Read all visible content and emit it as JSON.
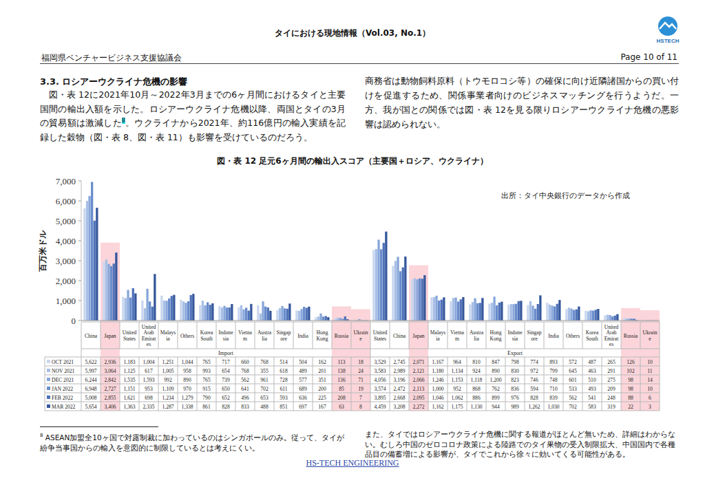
{
  "header": {
    "title": "タイにおける現地情報（Vol.03, No.1）",
    "logo": "HSTECH",
    "organization": "福岡県ベンチャービジネス支援協議会",
    "page": "Page 10 of 11"
  },
  "section": {
    "heading": "3.3. ロシアーウクライナ危機の影響",
    "paragraph_left": [
      "図・表 12に2021年10月～2022年3月までの6ヶ月間におけるタイと主要国間の輸出入額を示した。ロシアーウクライナ危機以降、両国とタイの3月の貿易額は激減した",
      "8",
      "。ウクライナから2021年、約116億円の輸入実績を記録した穀物（図・表 8、図・表 11）も影響を受けているのだろう。"
    ],
    "paragraph_right": "商務省は動物飼料原料（トウモロコシ等）の確保に向け近隣諸国からの買い付けを促進するため、関係事業者向けのビジネスマッチングを行うようだ。一方、我が国との関係では図・表 12を見る限りロシアーウクライナ危機の悪影響は認められない。"
  },
  "chart_data": {
    "type": "bar",
    "title": "図・表 12 足元6ヶ月間の輸出入スコア（主要国＋ロシア、ウクライナ）",
    "y_label": "百万米ドル",
    "annotation": "出所：タイ中央銀行のデータから作成",
    "group_labels": [
      "Import",
      "Export"
    ],
    "categories": [
      "China",
      "Japan",
      "United States",
      "United Arab Emirates",
      "Malaysia",
      "Others",
      "Korea South",
      "Indonesia",
      "Vietnam",
      "Australia",
      "Singapore",
      "India",
      "Hong Kong",
      "Russia",
      "Ukraine",
      "United States",
      "China",
      "Japan",
      "Malaysia",
      "Vietnam",
      "Australia",
      "Hong Kong",
      "Indonesia",
      "Singapore",
      "India",
      "Others",
      "Korea South",
      "United Arab Emirates",
      "Russia",
      "Ukraine"
    ],
    "series": [
      {
        "name": "OCT 2021",
        "color": "#c9d7ef",
        "values": [
          5622,
          2936,
          1183,
          1004,
          1251,
          1044,
          765,
          717,
          660,
          768,
          514,
          504,
          162,
          113,
          18,
          3529,
          2745,
          2071,
          1167,
          964,
          810,
          847,
          798,
          774,
          893,
          572,
          487,
          265,
          126,
          10
        ],
        "value_labels": [
          "5,622",
          "2,936",
          "1,183",
          "1,004",
          "1,251",
          "1,044",
          "765",
          "717",
          "660",
          "768",
          "514",
          "504",
          "162",
          "113",
          "18",
          "3,529",
          "2,745",
          "2,071",
          "1,167",
          "964",
          "810",
          "847",
          "798",
          "774",
          "893",
          "572",
          "487",
          "265",
          "126",
          "10"
        ]
      },
      {
        "name": "NOV 2021",
        "color": "#a8bfe6",
        "values": [
          5997,
          3064,
          1125,
          617,
          1005,
          958,
          993,
          654,
          768,
          355,
          618,
          489,
          201,
          138,
          24,
          3583,
          2989,
          2121,
          1180,
          1134,
          924,
          890,
          830,
          972,
          799,
          645,
          463,
          291,
          102,
          11
        ],
        "value_labels": [
          "5,997",
          "3,064",
          "1,125",
          "617",
          "1,005",
          "958",
          "993",
          "654",
          "768",
          "355",
          "618",
          "489",
          "201",
          "138",
          "24",
          "3,583",
          "2,989",
          "2,121",
          "1,180",
          "1,134",
          "924",
          "890",
          "830",
          "972",
          "799",
          "645",
          "463",
          "291",
          "102",
          "11"
        ]
      },
      {
        "name": "DEC 2021",
        "color": "#87a6da",
        "values": [
          6244,
          2842,
          1535,
          1593,
          992,
          890,
          765,
          739,
          562,
          961,
          728,
          577,
          351,
          136,
          71,
          4056,
          3196,
          2066,
          1246,
          1153,
          1118,
          1200,
          823,
          746,
          748,
          601,
          510,
          275,
          98,
          14
        ],
        "value_labels": [
          "6,244",
          "2,842",
          "1,535",
          "1,593",
          "992",
          "890",
          "765",
          "739",
          "562",
          "961",
          "728",
          "577",
          "351",
          "136",
          "71",
          "4,056",
          "3,196",
          "2,066",
          "1,246",
          "1,153",
          "1,118",
          "1,200",
          "823",
          "746",
          "748",
          "601",
          "510",
          "275",
          "98",
          "14"
        ]
      },
      {
        "name": "JAN 2022",
        "color": "#6a8dcc",
        "values": [
          6948,
          2727,
          1151,
          953,
          1109,
          970,
          915,
          650,
          641,
          702,
          611,
          689,
          200,
          85,
          19,
          3574,
          2472,
          2113,
          1000,
          952,
          868,
          762,
          836,
          594,
          710,
          533,
          493,
          209,
          98,
          10
        ],
        "value_labels": [
          "6,948",
          "2,727",
          "1,151",
          "953",
          "1,109",
          "970",
          "915",
          "650",
          "641",
          "702",
          "611",
          "689",
          "200",
          "85",
          "19",
          "3,574",
          "2,472",
          "2,113",
          "1,000",
          "952",
          "868",
          "762",
          "836",
          "594",
          "710",
          "533",
          "493",
          "209",
          "98",
          "10"
        ]
      },
      {
        "name": "FEB 2022",
        "color": "#4e72b8",
        "values": [
          5008,
          2855,
          1621,
          698,
          1234,
          1279,
          790,
          652,
          496,
          653,
          593,
          636,
          225,
          208,
          7,
          3895,
          2668,
          2095,
          1046,
          1062,
          886,
          899,
          976,
          828,
          839,
          562,
          541,
          248,
          88,
          6
        ],
        "value_labels": [
          "5,008",
          "2,855",
          "1,621",
          "698",
          "1,234",
          "1,279",
          "790",
          "652",
          "496",
          "653",
          "593",
          "636",
          "225",
          "208",
          "7",
          "3,895",
          "2,668",
          "2,095",
          "1,046",
          "1,062",
          "886",
          "899",
          "976",
          "828",
          "839",
          "562",
          "541",
          "248",
          "88",
          "6"
        ]
      },
      {
        "name": "MAR 2022",
        "color": "#35579c",
        "values": [
          5654,
          3406,
          1363,
          2335,
          1287,
          1338,
          861,
          828,
          833,
          488,
          851,
          697,
          167,
          63,
          8,
          4459,
          3208,
          2272,
          1162,
          1175,
          1130,
          944,
          989,
          1262,
          1030,
          702,
          583,
          319,
          22,
          3
        ],
        "value_labels": [
          "5,654",
          "3,406",
          "1,363",
          "2,335",
          "1,287",
          "1,338",
          "861",
          "828",
          "833",
          "488",
          "851",
          "697",
          "167",
          "63",
          "8",
          "4,459",
          "3,208",
          "2,272",
          "1,162",
          "1,175",
          "1,130",
          "944",
          "989",
          "1,262",
          "1,030",
          "702",
          "583",
          "319",
          "22",
          "3"
        ]
      }
    ],
    "ylim": [
      0,
      7000
    ],
    "yticks": [
      0,
      {
        "value": 1000,
        "label": "1,000"
      },
      {
        "value": 2000,
        "label": "2,000"
      },
      {
        "value": 3000,
        "label": "3,000"
      },
      {
        "value": 4000,
        "label": "4,000"
      },
      {
        "value": 5000,
        "label": "5,000"
      },
      {
        "value": 6000,
        "label": "6,000"
      },
      {
        "value": 7000,
        "label": "7,000"
      }
    ],
    "grid": false,
    "data_labels": true
  },
  "footnote": {
    "number": "8",
    "text": "ASEAN加盟全10ヶ国で対露制裁に加わっているのはシンガポールのみ。従って、タイが紛争当事国からの輸入を意図的に制限しているとは考えにくい。"
  },
  "note": "また、タイではロシアーウクライナ危機に関する報道がほとんど無いため、詳細はわからない。むしろ中国のゼロコロナ政策による陸路でのタイ果物の受入制限拡大、中国国内で各種品目の備蓄増による影響が、タイでこれから徐々に効いてくる可能性がある。",
  "footer": "HS-TECH ENGINEERING"
}
